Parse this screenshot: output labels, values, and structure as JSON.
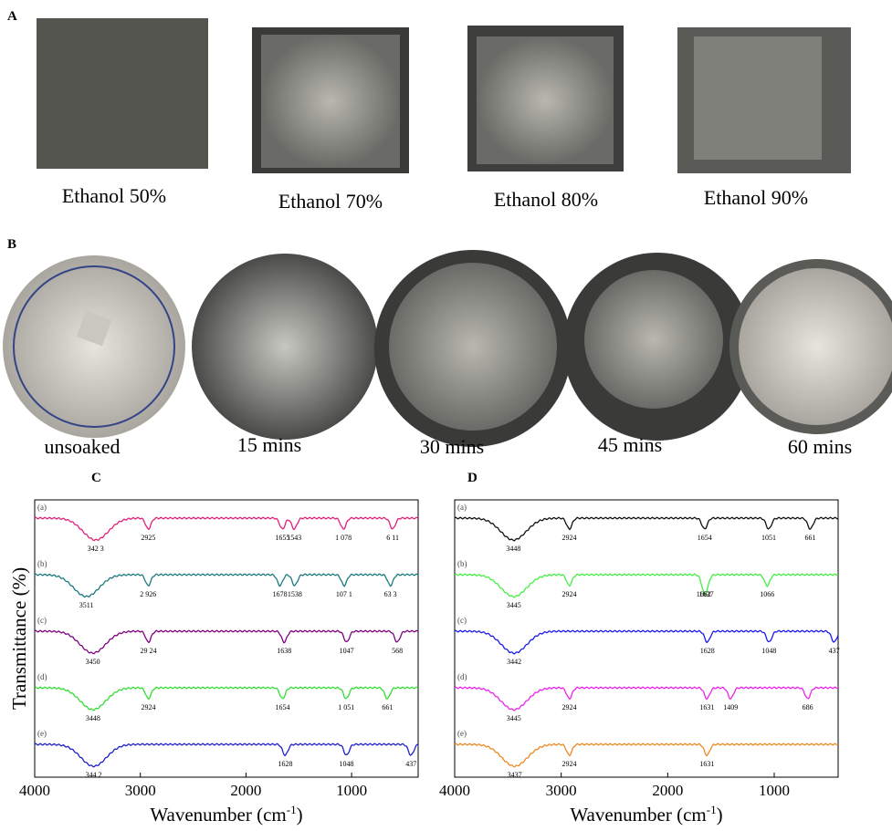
{
  "figure": {
    "panel_a": {
      "label": "A",
      "captions": [
        "Ethanol 50%",
        "Ethanol 70%",
        "Ethanol 80%",
        "Ethanol 90%"
      ]
    },
    "panel_b": {
      "label": "B",
      "captions": [
        "unsoaked",
        "15 mins",
        "30 mins",
        "45 mins",
        "60 mins"
      ]
    }
  },
  "chart_data": [
    {
      "type": "line",
      "label": "C",
      "ylabel": "Transmittance (%)",
      "xlabel": {
        "text": "Wavenumber (cm",
        "sup": "-1",
        "close": ")"
      },
      "xlim": [
        4000,
        370
      ],
      "xticks": [
        4000,
        3000,
        2000,
        1000
      ],
      "series": [
        {
          "name": "(a)",
          "color": "#e0207a",
          "peaks": [
            {
              "value": 3423,
              "label": "342 3"
            },
            2925,
            1655,
            1543,
            {
              "value": 1078,
              "label": "1 078"
            },
            {
              "value": 611,
              "label": "6 11"
            }
          ]
        },
        {
          "name": "(b)",
          "color": "#1a7a80",
          "peaks": [
            3511,
            {
              "value": 2926,
              "label": "2 926"
            },
            1678,
            1538,
            {
              "value": 1071,
              "label": "107 1"
            },
            {
              "value": 633,
              "label": "63 3"
            }
          ]
        },
        {
          "name": "(c)",
          "color": "#800080",
          "peaks": [
            3450,
            {
              "value": 2924,
              "label": "29 24"
            },
            1638,
            1047,
            568
          ]
        },
        {
          "name": "(d)",
          "color": "#33dd33",
          "peaks": [
            3448,
            2924,
            1654,
            {
              "value": 1051,
              "label": "1 051"
            },
            661
          ]
        },
        {
          "name": "(e)",
          "color": "#2020cc",
          "peaks": [
            {
              "value": 3442,
              "label": "344 2"
            },
            1628,
            1048,
            437
          ]
        }
      ]
    },
    {
      "type": "line",
      "label": "D",
      "xlabel": {
        "text": "Wavenumber (cm",
        "sup": "-1",
        "close": ")"
      },
      "xlim": [
        4000,
        400
      ],
      "xticks": [
        4000,
        3000,
        2000,
        1000
      ],
      "series": [
        {
          "name": "(a)",
          "color": "#111111",
          "peaks": [
            3448,
            2924,
            1654,
            1051,
            661
          ]
        },
        {
          "name": "(b)",
          "color": "#44ee44",
          "peaks": [
            3445,
            2924,
            1662,
            1637,
            1066
          ]
        },
        {
          "name": "(c)",
          "color": "#1a1aee",
          "peaks": [
            3442,
            1628,
            1048,
            437
          ]
        },
        {
          "name": "(d)",
          "color": "#ee22ee",
          "peaks": [
            3445,
            2924,
            1631,
            1409,
            686
          ]
        },
        {
          "name": "(e)",
          "color": "#ee8822",
          "peaks": [
            3437,
            2924,
            1631
          ]
        }
      ]
    }
  ]
}
